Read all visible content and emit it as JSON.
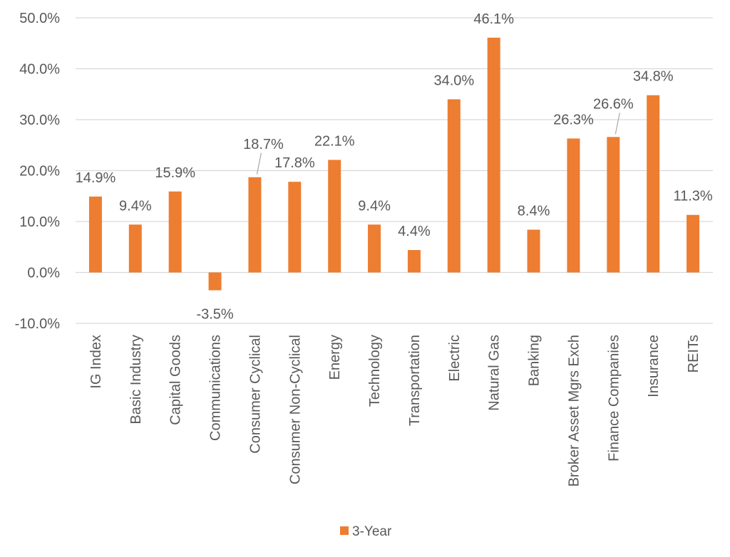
{
  "chart_data": {
    "type": "bar",
    "categories": [
      "IG Index",
      "Basic Industry",
      "Capital Goods",
      "Communications",
      "Consumer Cyclical",
      "Consumer Non-Cyclical",
      "Energy",
      "Technology",
      "Transportation",
      "Electric",
      "Natural Gas",
      "Banking",
      "Broker Asset Mgrs Exch",
      "Finance Companies",
      "Insurance",
      "REITs"
    ],
    "series": [
      {
        "name": "3-Year",
        "color": "#ED7D31",
        "values": [
          14.9,
          9.4,
          15.9,
          -3.5,
          18.7,
          17.8,
          22.1,
          9.4,
          4.4,
          34.0,
          46.1,
          8.4,
          26.3,
          26.6,
          34.8,
          11.3
        ]
      }
    ],
    "data_labels": [
      "14.9%",
      "9.4%",
      "15.9%",
      "-3.5%",
      "18.7%",
      "17.8%",
      "22.1%",
      "9.4%",
      "4.4%",
      "34.0%",
      "46.1%",
      "8.4%",
      "26.3%",
      "26.6%",
      "34.8%",
      "11.3%"
    ],
    "yticks": [
      50,
      40,
      30,
      20,
      10,
      0,
      -10
    ],
    "ytick_labels": [
      "50.0%",
      "40.0%",
      "30.0%",
      "20.0%",
      "10.0%",
      "0.0%",
      "-10.0%"
    ],
    "ylim": [
      -10,
      50
    ],
    "title": "",
    "xlabel": "",
    "ylabel": "",
    "grid": true,
    "legend_position": "bottom-center",
    "legend_label": "3-Year"
  }
}
